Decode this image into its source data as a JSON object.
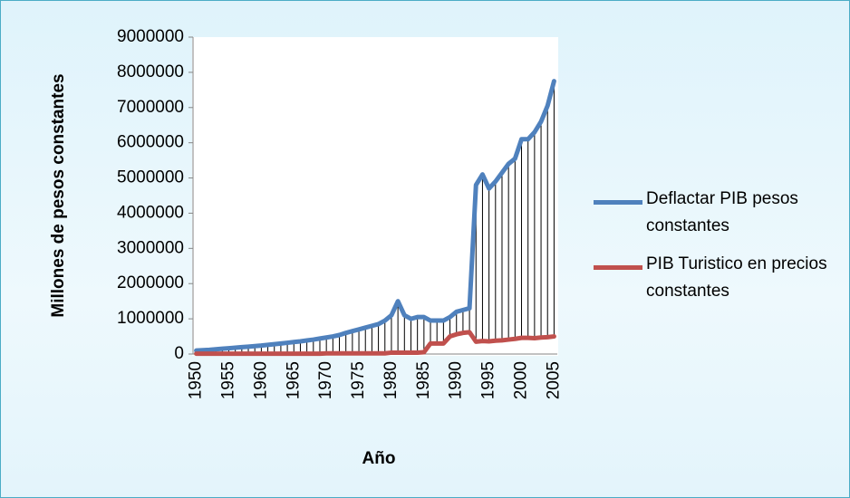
{
  "chart_data": {
    "type": "line",
    "x_label": "Año",
    "y_label": "Millones de pesos constantes",
    "categories": [
      "1950",
      null,
      null,
      null,
      null,
      "1955",
      null,
      null,
      null,
      null,
      "1960",
      null,
      null,
      null,
      null,
      "1965",
      null,
      null,
      null,
      null,
      "1970",
      null,
      null,
      null,
      null,
      "1975",
      null,
      null,
      null,
      null,
      "1980",
      null,
      null,
      null,
      null,
      "1985",
      null,
      null,
      null,
      null,
      "1990",
      null,
      null,
      null,
      null,
      "1995",
      null,
      null,
      null,
      null,
      "2000",
      null,
      null,
      null,
      null,
      "2005"
    ],
    "series": [
      {
        "name": "Deflactar PIB pesos constantes",
        "color": "#4f81bd",
        "values": [
          100000,
          110000,
          120000,
          135000,
          150000,
          165000,
          180000,
          195000,
          210000,
          225000,
          240000,
          260000,
          280000,
          300000,
          320000,
          340000,
          360000,
          385000,
          410000,
          440000,
          470000,
          500000,
          540000,
          600000,
          650000,
          700000,
          750000,
          800000,
          850000,
          950000,
          1100000,
          1500000,
          1100000,
          1000000,
          1050000,
          1050000,
          950000,
          950000,
          950000,
          1050000,
          1200000,
          1250000,
          1300000,
          4800000,
          5100000,
          4700000,
          4900000,
          5150000,
          5400000,
          5550000,
          6100000,
          6100000,
          6300000,
          6600000,
          7050000,
          7750000
        ]
      },
      {
        "name": "PIB Turistico en precios constantes",
        "color": "#c0504d",
        "values": [
          10000,
          10000,
          10000,
          10000,
          10000,
          10000,
          10000,
          10000,
          10000,
          10000,
          10000,
          10000,
          10000,
          10000,
          10000,
          10000,
          10000,
          10000,
          10000,
          10000,
          20000,
          20000,
          20000,
          20000,
          20000,
          20000,
          20000,
          20000,
          20000,
          20000,
          40000,
          40000,
          40000,
          40000,
          40000,
          50000,
          300000,
          300000,
          300000,
          500000,
          560000,
          600000,
          620000,
          350000,
          370000,
          360000,
          380000,
          390000,
          410000,
          430000,
          460000,
          460000,
          450000,
          470000,
          480000,
          500000
        ]
      }
    ],
    "drop_lines": true,
    "ylim": [
      0,
      9000000
    ],
    "yticks": [
      0,
      1000000,
      2000000,
      3000000,
      4000000,
      5000000,
      6000000,
      7000000,
      8000000,
      9000000
    ],
    "grid": false
  }
}
